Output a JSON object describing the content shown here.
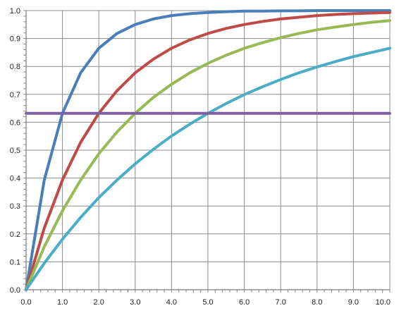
{
  "chart_data": {
    "type": "line",
    "title": "",
    "xlabel": "",
    "ylabel": "",
    "xlim": [
      0,
      10
    ],
    "ylim": [
      0,
      1
    ],
    "grid": true,
    "legend": "none",
    "x_ticks": [
      0,
      1,
      2,
      3,
      4,
      5,
      6,
      7,
      8,
      9,
      10
    ],
    "x_tick_labels": [
      "0.0",
      "1.0",
      "2.0",
      "3.0",
      "4.0",
      "5.0",
      "6.0",
      "7.0",
      "8.0",
      "9.0",
      "10.0"
    ],
    "y_ticks": [
      0,
      0.1,
      0.2,
      0.3,
      0.4,
      0.5,
      0.6,
      0.7,
      0.8,
      0.9,
      1
    ],
    "y_tick_labels": [
      "0.0",
      "0.1",
      "0.2",
      "0.3",
      "0.4",
      "0.5",
      "0.6",
      "0.7",
      "0.8",
      "0.9",
      "1.0"
    ],
    "x": [
      0,
      0.5,
      1,
      1.5,
      2,
      2.5,
      3,
      3.5,
      4,
      4.5,
      5,
      5.5,
      6,
      6.5,
      7,
      7.5,
      8,
      8.5,
      9,
      9.5,
      10
    ],
    "series": [
      {
        "color": "#4a7ebb",
        "values": [
          0,
          0.393,
          0.632,
          0.777,
          0.865,
          0.918,
          0.95,
          0.97,
          0.982,
          0.989,
          0.993,
          0.996,
          0.998,
          0.998,
          0.999,
          0.999,
          1,
          1,
          1,
          1,
          1
        ]
      },
      {
        "color": "#be4b48",
        "values": [
          0,
          0.221,
          0.393,
          0.528,
          0.632,
          0.713,
          0.777,
          0.826,
          0.865,
          0.895,
          0.918,
          0.936,
          0.95,
          0.961,
          0.97,
          0.976,
          0.982,
          0.986,
          0.989,
          0.991,
          0.993
        ]
      },
      {
        "color": "#98b954",
        "values": [
          0,
          0.154,
          0.283,
          0.393,
          0.487,
          0.565,
          0.632,
          0.689,
          0.736,
          0.777,
          0.811,
          0.84,
          0.865,
          0.885,
          0.903,
          0.918,
          0.931,
          0.941,
          0.95,
          0.958,
          0.964
        ]
      },
      {
        "color": "#4bacc6",
        "values": [
          0,
          0.095,
          0.181,
          0.259,
          0.33,
          0.393,
          0.451,
          0.503,
          0.551,
          0.593,
          0.632,
          0.667,
          0.699,
          0.727,
          0.753,
          0.777,
          0.798,
          0.817,
          0.835,
          0.85,
          0.865
        ]
      },
      {
        "color": "#7d60a0",
        "values": [
          0.632,
          0.632,
          0.632,
          0.632,
          0.632,
          0.632,
          0.632,
          0.632,
          0.632,
          0.632,
          0.632,
          0.632,
          0.632,
          0.632,
          0.632,
          0.632,
          0.632,
          0.632,
          0.632,
          0.632,
          0.632
        ]
      }
    ]
  }
}
